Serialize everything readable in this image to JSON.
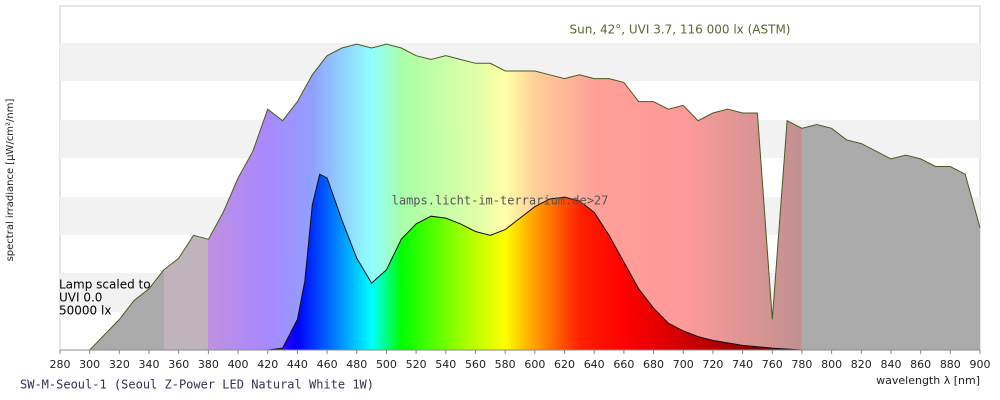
{
  "chart_data": {
    "type": "area",
    "annotations": [
      "Sun, 42°, UVI 3.7, 116 000 lx (ASTM)",
      "lamps.licht-im-terrarium.de>27",
      "Lamp scaled to",
      "UVI 0.0",
      "50000 lx"
    ],
    "title": "SW-M-Seoul-1 (Seoul Z-Power LED Natural White 1W)",
    "xlabel": "wavelength λ [nm]",
    "ylabel": "spectral irradiance [µW/cm²/nm]",
    "xlim": [
      280,
      900
    ],
    "ylim": [
      0,
      9
    ],
    "xticks": [
      280,
      300,
      320,
      340,
      360,
      380,
      400,
      420,
      440,
      460,
      480,
      500,
      520,
      540,
      560,
      580,
      600,
      620,
      640,
      660,
      680,
      700,
      720,
      740,
      760,
      780,
      800,
      820,
      840,
      860,
      880,
      900
    ],
    "series": [
      {
        "name": "Sun",
        "color": "#4a5a20",
        "x": [
          300,
          310,
          320,
          330,
          340,
          350,
          360,
          370,
          380,
          390,
          400,
          410,
          420,
          430,
          440,
          450,
          460,
          470,
          480,
          490,
          500,
          510,
          520,
          530,
          540,
          550,
          560,
          570,
          580,
          590,
          600,
          610,
          620,
          630,
          640,
          650,
          660,
          670,
          680,
          690,
          700,
          710,
          720,
          730,
          740,
          750,
          760,
          770,
          780,
          790,
          800,
          810,
          820,
          830,
          840,
          850,
          860,
          870,
          880,
          890,
          900
        ],
        "values": [
          0,
          0.4,
          0.8,
          1.3,
          1.6,
          2.1,
          2.4,
          3.0,
          2.9,
          3.6,
          4.5,
          5.2,
          6.3,
          6.0,
          6.5,
          7.2,
          7.7,
          7.9,
          8.0,
          7.9,
          8.0,
          7.9,
          7.7,
          7.6,
          7.7,
          7.6,
          7.5,
          7.5,
          7.3,
          7.3,
          7.3,
          7.2,
          7.1,
          7.2,
          7.1,
          7.1,
          7.0,
          6.5,
          6.5,
          6.3,
          6.4,
          6.0,
          6.2,
          6.3,
          6.2,
          6.2,
          0.8,
          6.0,
          5.8,
          5.9,
          5.8,
          5.5,
          5.4,
          5.2,
          5.0,
          5.1,
          5.0,
          4.8,
          4.8,
          4.6,
          3.2
        ]
      },
      {
        "name": "Lamp",
        "color": "#111111",
        "x": [
          420,
          430,
          440,
          445,
          450,
          455,
          460,
          470,
          480,
          490,
          500,
          510,
          520,
          530,
          540,
          550,
          560,
          570,
          580,
          590,
          600,
          610,
          620,
          630,
          640,
          650,
          660,
          670,
          680,
          690,
          700,
          710,
          720,
          740,
          760,
          780
        ],
        "values": [
          0,
          0.05,
          0.8,
          1.8,
          3.8,
          4.6,
          4.5,
          3.4,
          2.4,
          1.75,
          2.1,
          2.9,
          3.3,
          3.5,
          3.45,
          3.3,
          3.1,
          3.0,
          3.15,
          3.45,
          3.75,
          3.95,
          4.0,
          3.9,
          3.6,
          3.0,
          2.3,
          1.6,
          1.1,
          0.7,
          0.5,
          0.35,
          0.25,
          0.12,
          0.05,
          0
        ]
      }
    ]
  }
}
